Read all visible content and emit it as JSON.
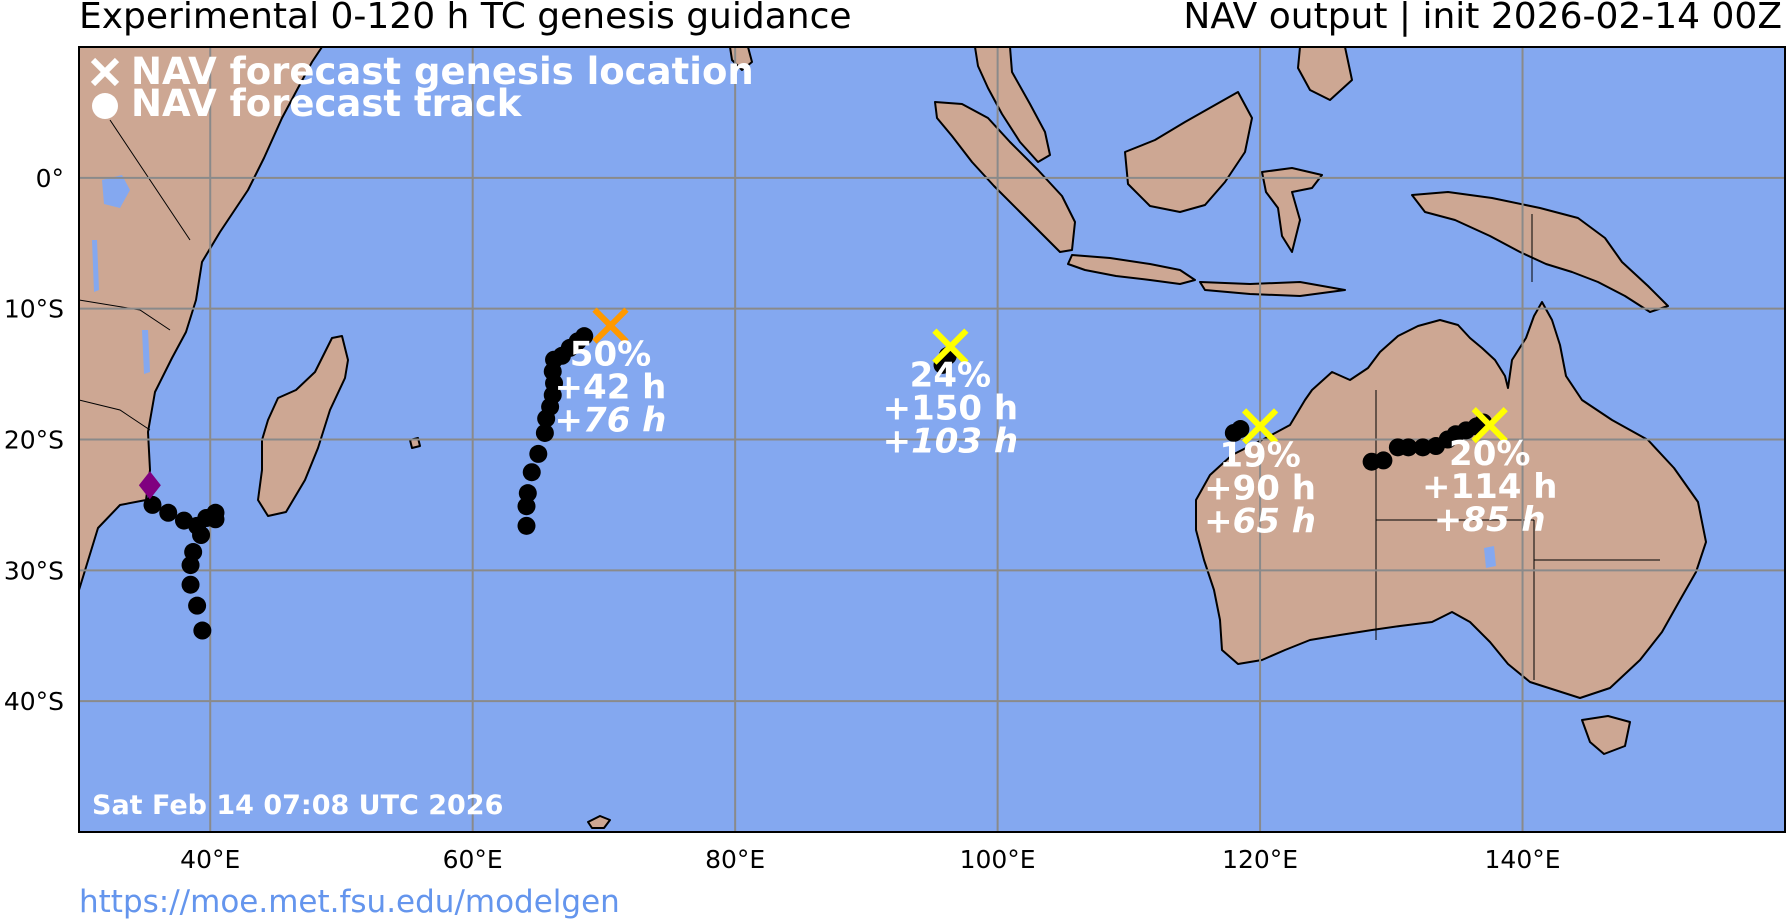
{
  "header": {
    "title": "Experimental 0-120 h TC genesis guidance",
    "subtitle": "NAV output | init 2026-02-14 00Z"
  },
  "footer": {
    "url": "https://moe.met.fsu.edu/modelgen"
  },
  "colors": {
    "ocean": "#84a8f0",
    "land": "#cda793",
    "grid": "#8a8a8a",
    "track": "#000000",
    "marker_orange": "#ff9900",
    "marker_yellow": "#ffff00",
    "marker_purple": "#800080"
  },
  "map": {
    "extent": {
      "lon": [
        30,
        160
      ],
      "lat": [
        -50,
        10
      ]
    },
    "lon_ticks": [
      {
        "value": 40,
        "label": "40°E"
      },
      {
        "value": 60,
        "label": "60°E"
      },
      {
        "value": 80,
        "label": "80°E"
      },
      {
        "value": 100,
        "label": "100°E"
      },
      {
        "value": 120,
        "label": "120°E"
      },
      {
        "value": 140,
        "label": "140°E"
      }
    ],
    "lat_ticks": [
      {
        "value": 0,
        "label": "0°"
      },
      {
        "value": -10,
        "label": "10°S"
      },
      {
        "value": -20,
        "label": "20°S"
      },
      {
        "value": -30,
        "label": "30°S"
      },
      {
        "value": -40,
        "label": "40°S"
      }
    ],
    "legend": {
      "genesis": "NAV forecast genesis location",
      "track": "NAV forecast track"
    },
    "timestamp": "Sat Feb 14 07:08 UTC 2026",
    "storms": [
      {
        "id": "s1",
        "genesis": {
          "lon": 70.5,
          "lat": -11.3
        },
        "color": "#ff9900",
        "prob": "50%",
        "lead1": "+42 h",
        "lead2": "+76 h",
        "track": [
          [
            68.5,
            -12.1
          ],
          [
            68.0,
            -12.5
          ],
          [
            67.4,
            -13.0
          ],
          [
            66.8,
            -13.6
          ],
          [
            66.2,
            -13.9
          ],
          [
            66.1,
            -14.8
          ],
          [
            66.2,
            -15.7
          ],
          [
            66.1,
            -16.6
          ],
          [
            65.9,
            -17.5
          ],
          [
            65.6,
            -18.4
          ],
          [
            65.5,
            -19.5
          ],
          [
            65.0,
            -21.1
          ],
          [
            64.5,
            -22.5
          ],
          [
            64.2,
            -24.1
          ],
          [
            64.1,
            -25.1
          ],
          [
            64.1,
            -26.6
          ]
        ]
      },
      {
        "id": "s2",
        "genesis": {
          "lon": 96.4,
          "lat": -12.9
        },
        "color": "#ffff00",
        "prob": "24%",
        "lead1": "+150 h",
        "lead2": "+103 h",
        "track": [
          [
            95.8,
            -14.3
          ],
          [
            96.2,
            -13.6
          ]
        ]
      },
      {
        "id": "s3",
        "genesis": {
          "lon": 120.0,
          "lat": -19.0
        },
        "color": "#ffff00",
        "prob": "19%",
        "lead1": "+90 h",
        "lead2": "+65 h",
        "track": [
          [
            118.0,
            -19.5
          ],
          [
            118.5,
            -19.2
          ]
        ]
      },
      {
        "id": "s4",
        "genesis": {
          "lon": 137.5,
          "lat": -18.9
        },
        "color": "#ffff00",
        "prob": "20%",
        "lead1": "+114 h",
        "lead2": "+85 h",
        "track": [
          [
            137.0,
            -18.7
          ],
          [
            136.5,
            -19.0
          ],
          [
            135.7,
            -19.3
          ],
          [
            134.9,
            -19.6
          ],
          [
            134.3,
            -20.0
          ],
          [
            133.4,
            -20.5
          ],
          [
            132.4,
            -20.6
          ],
          [
            131.3,
            -20.6
          ],
          [
            130.5,
            -20.6
          ],
          [
            129.4,
            -21.6
          ],
          [
            128.5,
            -21.7
          ]
        ]
      },
      {
        "id": "s5",
        "genesis": {
          "lon": 35.4,
          "lat": -23.5
        },
        "color": "#800080",
        "marker": "diamond",
        "track": [
          [
            35.6,
            -25.0
          ],
          [
            36.8,
            -25.6
          ],
          [
            38.0,
            -26.2
          ],
          [
            39.0,
            -26.6
          ],
          [
            39.7,
            -26.0
          ],
          [
            40.4,
            -25.6
          ],
          [
            40.4,
            -26.1
          ],
          [
            39.3,
            -27.3
          ],
          [
            38.7,
            -28.6
          ],
          [
            38.5,
            -29.6
          ],
          [
            38.5,
            -31.1
          ],
          [
            39.0,
            -32.7
          ],
          [
            39.4,
            -34.6
          ]
        ]
      }
    ]
  }
}
